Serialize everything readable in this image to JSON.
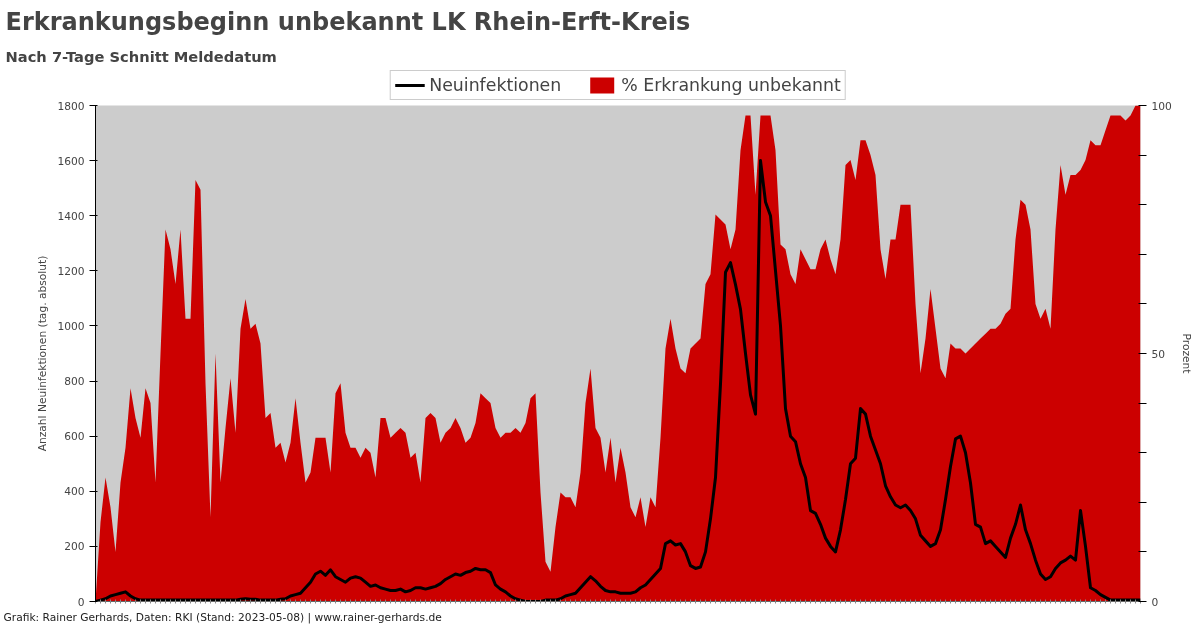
{
  "chart_data": {
    "type": "line",
    "title": "Erkrankungsbeginn unbekannt LK Rhein-Erft-Kreis",
    "subtitle": "Nach 7-Tage Schnitt Meldedatum",
    "ylabel": "Anzahl Neuinfektionen (tag. absolut)",
    "y2label": "Prozent",
    "annotations": [
      "Grafik: Rainer Gerhards, Daten: RKI (Stand: 2023-05-08) | www.rainer-gerhards.de"
    ],
    "categories": [
      null,
      null,
      null,
      null,
      null,
      null,
      null,
      null,
      null,
      null,
      null,
      null,
      null,
      null,
      null,
      null,
      null,
      null,
      null,
      null,
      null,
      null,
      null,
      null,
      null,
      null,
      null,
      null,
      null,
      null,
      null,
      null,
      null,
      null,
      null,
      null,
      null,
      null,
      null,
      null,
      null,
      null,
      null,
      null,
      null,
      null,
      null,
      null,
      null,
      null,
      null,
      null,
      null,
      null,
      null,
      null,
      null,
      null,
      null,
      null,
      null,
      null,
      null,
      null,
      null,
      null,
      null,
      null,
      null,
      null,
      null,
      null,
      null,
      null,
      null,
      null,
      null,
      null,
      null,
      null,
      null,
      null,
      null,
      null,
      null,
      null,
      null,
      null,
      null,
      null,
      null,
      null,
      null,
      null,
      null,
      null,
      null,
      null,
      null,
      null,
      null,
      null,
      null,
      null,
      null,
      null,
      null,
      null,
      null,
      null,
      null,
      null,
      null,
      null,
      null,
      null,
      null,
      null,
      null,
      null,
      null,
      null,
      null,
      null,
      null,
      null,
      null,
      null,
      null,
      null,
      null,
      null,
      null,
      null,
      null,
      null,
      null,
      null,
      null,
      null,
      null,
      null,
      null,
      null,
      null,
      null,
      null,
      null,
      null,
      null,
      null,
      null,
      null,
      null,
      null,
      null,
      null,
      null,
      null,
      null,
      null,
      null,
      null,
      null,
      null,
      null,
      null,
      null,
      null,
      null,
      null,
      null,
      null,
      null,
      null,
      null,
      null,
      null,
      null,
      null,
      null,
      null,
      null,
      null,
      null,
      null,
      null,
      null,
      null,
      null,
      null,
      null,
      null,
      null,
      null,
      null,
      null,
      null,
      null,
      null,
      null,
      null,
      null,
      null,
      null,
      null,
      null,
      null,
      null,
      null
    ],
    "series": [
      {
        "name": "Neuinfektionen",
        "color": "#000000",
        "values": [
          0,
          5,
          10,
          20,
          25,
          30,
          35,
          20,
          10,
          5,
          5,
          5,
          5,
          5,
          5,
          5,
          5,
          5,
          5,
          5,
          5,
          5,
          5,
          5,
          5,
          5,
          5,
          5,
          5,
          8,
          10,
          8,
          8,
          5,
          5,
          5,
          5,
          8,
          10,
          20,
          25,
          30,
          50,
          70,
          100,
          110,
          95,
          115,
          90,
          80,
          70,
          85,
          90,
          85,
          70,
          55,
          60,
          50,
          45,
          40,
          40,
          45,
          35,
          40,
          50,
          50,
          45,
          50,
          55,
          65,
          80,
          90,
          100,
          95,
          105,
          110,
          120,
          115,
          115,
          105,
          60,
          45,
          35,
          20,
          10,
          5,
          0,
          0,
          0,
          0,
          5,
          5,
          5,
          10,
          20,
          25,
          30,
          50,
          70,
          90,
          75,
          55,
          40,
          35,
          35,
          30,
          30,
          30,
          35,
          50,
          60,
          80,
          100,
          120,
          210,
          220,
          205,
          210,
          180,
          130,
          120,
          125,
          180,
          300,
          450,
          790,
          1195,
          1230,
          1150,
          1060,
          900,
          750,
          680,
          1600,
          1450,
          1400,
          1200,
          1000,
          700,
          600,
          580,
          500,
          450,
          330,
          320,
          280,
          230,
          200,
          180,
          260,
          370,
          500,
          520,
          700,
          680,
          600,
          550,
          500,
          420,
          380,
          350,
          340,
          350,
          330,
          300,
          240,
          220,
          200,
          210,
          260,
          370,
          490,
          590,
          600,
          540,
          430,
          280,
          270,
          210,
          220,
          200,
          180,
          160,
          230,
          280,
          350,
          260,
          210,
          150,
          100,
          80,
          90,
          120,
          140,
          150,
          165,
          150,
          330,
          200,
          50,
          40,
          25,
          15,
          5,
          5,
          5,
          5,
          5,
          5,
          5
        ]
      },
      {
        "name": "% Erkrankung unbekannt",
        "type": "area",
        "axis": "y2",
        "color": "#cc0000",
        "values": [
          0,
          16,
          25,
          19,
          10,
          24,
          31,
          43,
          37,
          33,
          43,
          40,
          24,
          50,
          75,
          71,
          64,
          75,
          57,
          57,
          85,
          83,
          44,
          17,
          50,
          24,
          35,
          45,
          34,
          55,
          61,
          55,
          56,
          52,
          37,
          38,
          31,
          32,
          28,
          32,
          41,
          32,
          24,
          26,
          33,
          33,
          33,
          26,
          42,
          44,
          34,
          31,
          31,
          29,
          31,
          30,
          25,
          37,
          37,
          33,
          34,
          35,
          34,
          29,
          30,
          24,
          37,
          38,
          37,
          32,
          34,
          35,
          37,
          35,
          32,
          33,
          36,
          42,
          41,
          40,
          35,
          33,
          34,
          34,
          35,
          34,
          36,
          41,
          42,
          22,
          8,
          6,
          15,
          22,
          21,
          21,
          19,
          26,
          40,
          47,
          35,
          33,
          26,
          33,
          24,
          31,
          26,
          19,
          17,
          21,
          15,
          21,
          19,
          33,
          51,
          57,
          51,
          47,
          46,
          51,
          52,
          53,
          64,
          66,
          78,
          77,
          76,
          71,
          75,
          91,
          98,
          98,
          82,
          98,
          98,
          98,
          91,
          72,
          71,
          66,
          64,
          71,
          69,
          67,
          67,
          71,
          73,
          69,
          66,
          73,
          88,
          89,
          85,
          93,
          93,
          90,
          86,
          71,
          65,
          73,
          73,
          80,
          80,
          80,
          60,
          46,
          53,
          63,
          55,
          47,
          45,
          52,
          51,
          51,
          50,
          51,
          52,
          53,
          54,
          55,
          55,
          56,
          58,
          59,
          73,
          81,
          80,
          75,
          60,
          57,
          59,
          55,
          75,
          88,
          82,
          86,
          86,
          87,
          89,
          93,
          92,
          92,
          95,
          98,
          98,
          98,
          97,
          98,
          100,
          100
        ]
      }
    ],
    "ylim": [
      0,
      1800
    ],
    "yticks": [
      0,
      200,
      400,
      600,
      800,
      1000,
      1200,
      1400,
      1600,
      1800
    ],
    "y2lim": [
      0,
      100
    ],
    "y2ticks": [
      0,
      {
        "value": 10,
        "label": null
      },
      {
        "value": 20,
        "label": null
      },
      {
        "value": 30,
        "label": null
      },
      {
        "value": 40,
        "label": null
      },
      50,
      {
        "value": 60,
        "label": null
      },
      {
        "value": 70,
        "label": null
      },
      {
        "value": 80,
        "label": null
      },
      {
        "value": 90,
        "label": null
      },
      100
    ],
    "tick_labels": "y",
    "grid": false,
    "legend": "top"
  }
}
